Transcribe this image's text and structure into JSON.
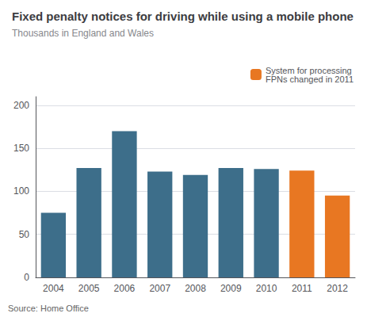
{
  "chart_data": {
    "type": "bar",
    "title": "Fixed penalty notices for driving while using a mobile phone",
    "subtitle": "Thousands in England and Wales",
    "annotations": [
      "Source: Home Office"
    ],
    "categories": [
      "2004",
      "2005",
      "2006",
      "2007",
      "2008",
      "2009",
      "2010",
      "2011",
      "2012"
    ],
    "series": [
      {
        "color": "#3d6e8a",
        "values": [
          75,
          127,
          170,
          123,
          119,
          127,
          126,
          null,
          null
        ]
      },
      {
        "name": "System for processing\nFPNs changed in 2011",
        "color": "#e87722",
        "values": [
          null,
          null,
          null,
          null,
          null,
          null,
          null,
          124,
          95
        ]
      }
    ],
    "ylim": [
      0,
      210
    ],
    "yticks": [
      0,
      50,
      100,
      150,
      200
    ],
    "grid": true,
    "legend": "upper right"
  }
}
